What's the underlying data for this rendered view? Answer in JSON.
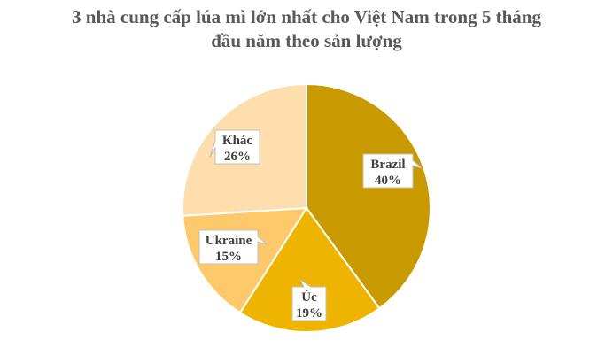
{
  "chart_data": {
    "type": "pie",
    "title_lines": [
      "3 nhà cung cấp lúa mì lớn nhất cho Việt Nam trong 5 tháng",
      "đầu năm theo sản lượng"
    ],
    "slices": [
      {
        "label": "Brazil",
        "value": 40,
        "value_text": "40%",
        "color": "#C99A00"
      },
      {
        "label": "Úc",
        "value": 19,
        "value_text": "19%",
        "color": "#EEB400"
      },
      {
        "label": "Ukraine",
        "value": 15,
        "value_text": "15%",
        "color": "#FEC96A"
      },
      {
        "label": "Khác",
        "value": 26,
        "value_text": "26%",
        "color": "#FDDEAC"
      }
    ],
    "start_angle": "12 o'clock",
    "direction": "clockwise",
    "legend": "none",
    "labels": "data callouts"
  }
}
